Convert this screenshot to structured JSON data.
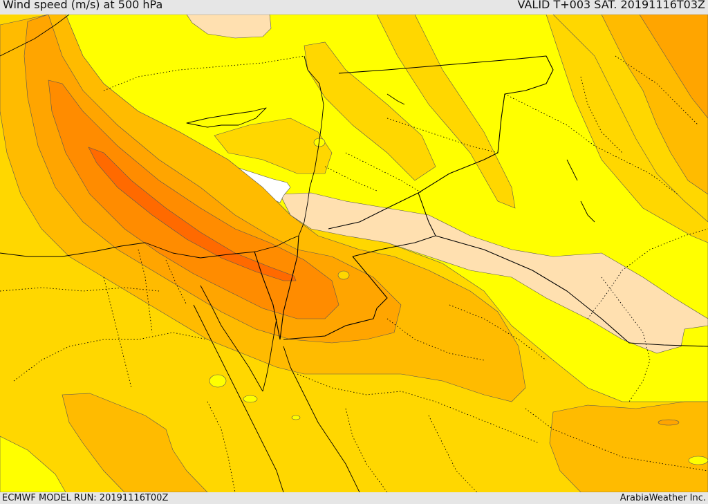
{
  "header": {
    "title": "Wind speed (m/s) at 500 hPa",
    "valid": "VALID T+003 SAT. 20191116T03Z"
  },
  "footer": {
    "model_run": "ECMWF MODEL RUN: 20191116T00Z",
    "credit": "ArabiaWeather Inc."
  },
  "colors": {
    "calm": "#ffffff",
    "light": "#ffe0b0",
    "yellow": "#ffff00",
    "gold": "#ffd700",
    "amber": "#ffbb00",
    "orange_light": "#ffa500",
    "orange": "#ff8c00",
    "orange_dark": "#ff6a00",
    "border": "#000000",
    "contour": "#555555"
  }
}
